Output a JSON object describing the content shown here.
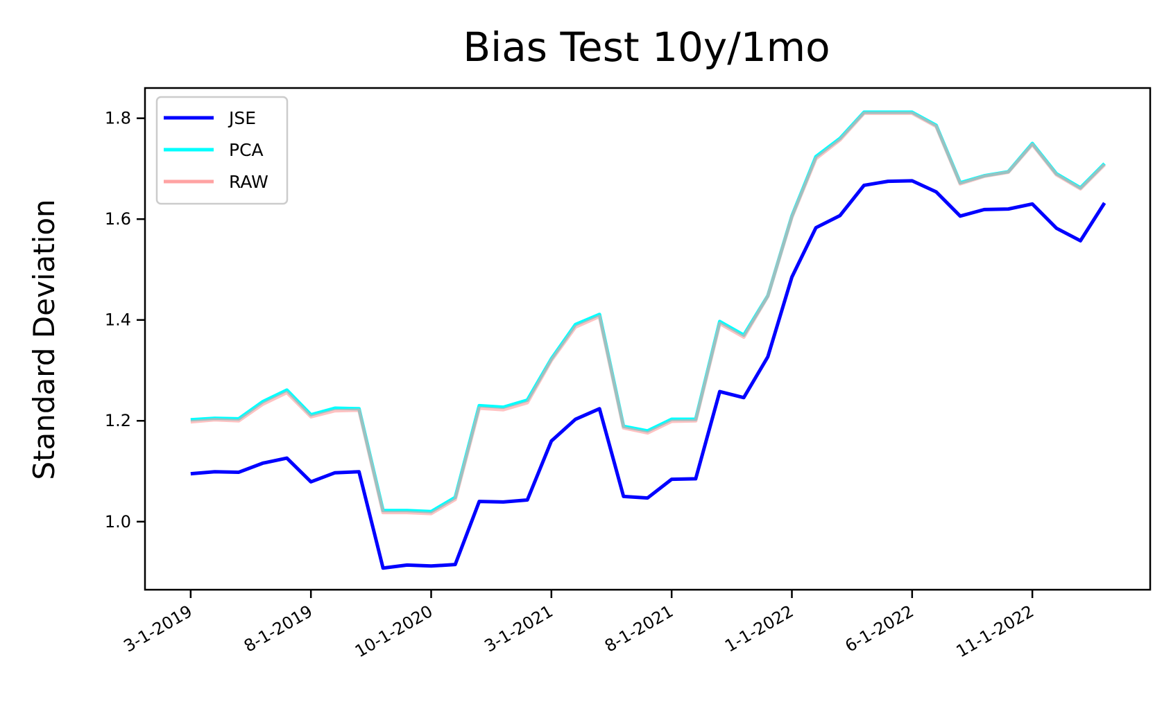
{
  "chart_data": {
    "type": "line",
    "title": "Bias Test 10y/1mo",
    "xlabel": "",
    "ylabel": "Standard Deviation",
    "ylim": [
      0.865,
      1.86
    ],
    "yticks": [
      1.0,
      1.2,
      1.4,
      1.6,
      1.8
    ],
    "ytick_labels": [
      "1.0",
      "1.2",
      "1.4",
      "1.6",
      "1.8"
    ],
    "grid": false,
    "legend_position": "top-left",
    "x_tick_labels": [
      "3-1-2019",
      "8-1-2019",
      "10-1-2020",
      "3-1-2021",
      "8-1-2021",
      "1-1-2022",
      "6-1-2022",
      "11-1-2022"
    ],
    "x_tick_positions": [
      0,
      5,
      10,
      15,
      20,
      25,
      30,
      35
    ],
    "x_range": [
      -1.9,
      39.9
    ],
    "series": [
      {
        "name": "JSE",
        "color": "#0000ff",
        "values": [
          1.095,
          1.099,
          1.098,
          1.116,
          1.126,
          1.079,
          1.097,
          1.099,
          0.908,
          0.914,
          0.912,
          0.915,
          1.04,
          1.039,
          1.043,
          1.16,
          1.203,
          1.224,
          1.05,
          1.047,
          1.084,
          1.085,
          1.258,
          1.246,
          1.327,
          1.485,
          1.583,
          1.607,
          1.667,
          1.675,
          1.676,
          1.654,
          1.606,
          1.619,
          1.62,
          1.63,
          1.582,
          1.557,
          1.632
        ]
      },
      {
        "name": "PCA",
        "color": "#00ffff",
        "values": [
          1.202,
          1.205,
          1.204,
          1.238,
          1.261,
          1.212,
          1.225,
          1.224,
          1.022,
          1.022,
          1.02,
          1.048,
          1.23,
          1.227,
          1.241,
          1.323,
          1.391,
          1.411,
          1.189,
          1.18,
          1.203,
          1.203,
          1.397,
          1.37,
          1.448,
          1.606,
          1.724,
          1.76,
          1.812,
          1.812,
          1.812,
          1.786,
          1.672,
          1.686,
          1.694,
          1.75,
          1.69,
          1.662,
          1.71
        ]
      },
      {
        "name": "RAW",
        "color": "#ff9999",
        "values": [
          1.198,
          1.202,
          1.2,
          1.233,
          1.256,
          1.208,
          1.22,
          1.221,
          1.018,
          1.018,
          1.016,
          1.044,
          1.225,
          1.222,
          1.236,
          1.32,
          1.386,
          1.407,
          1.186,
          1.176,
          1.199,
          1.2,
          1.393,
          1.366,
          1.447,
          1.604,
          1.72,
          1.757,
          1.81,
          1.81,
          1.81,
          1.784,
          1.67,
          1.685,
          1.693,
          1.748,
          1.688,
          1.66,
          1.708
        ]
      }
    ]
  }
}
